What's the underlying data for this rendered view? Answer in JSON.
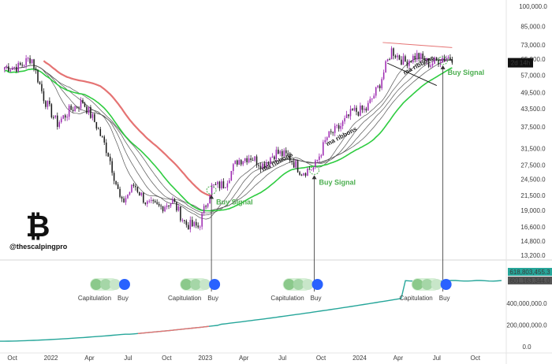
{
  "chart_data": {
    "type": "line",
    "title": "",
    "price_panel": {
      "scale": "log",
      "ylim": [
        13200,
        100000
      ],
      "y_ticks": [
        "100,000.0",
        "85,000.0",
        "73,000.0",
        "65,000.0",
        "57,000.0",
        "49,500.0",
        "43,500.0",
        "37,500.0",
        "31,500.0",
        "27,500.0",
        "24,500.0",
        "21,500.0",
        "19,000.0",
        "16,600.0",
        "14,800.0",
        "13,200.0"
      ],
      "current_price_label": "2d 14h",
      "series": [
        {
          "kind": "candlestick",
          "dates": [
            "2021-10",
            "2021-11",
            "2021-12",
            "2022-01",
            "2022-02",
            "2022-03",
            "2022-04",
            "2022-05",
            "2022-06",
            "2022-07",
            "2022-08",
            "2022-09",
            "2022-10",
            "2022-11",
            "2022-12",
            "2023-01",
            "2023-02",
            "2023-03",
            "2023-04",
            "2023-05",
            "2023-06",
            "2023-07",
            "2023-08",
            "2023-09",
            "2023-10",
            "2023-11",
            "2023-12",
            "2024-01",
            "2024-02",
            "2024-03",
            "2024-04",
            "2024-05",
            "2024-06",
            "2024-07"
          ],
          "close": [
            61000,
            66000,
            47000,
            38500,
            43000,
            46000,
            38500,
            30000,
            20000,
            23500,
            20000,
            19500,
            20500,
            17000,
            16600,
            23000,
            23500,
            28500,
            29500,
            27500,
            30500,
            29500,
            26000,
            27000,
            34500,
            37500,
            42500,
            43000,
            52000,
            70000,
            63500,
            67000,
            62500,
            66000
          ]
        }
      ],
      "annotations": [
        {
          "text": "Buy Signal",
          "date": "2023-01"
        },
        {
          "text": "Buy Signal",
          "date": "2023-09"
        },
        {
          "text": "Buy Signal",
          "date": "2024-07"
        },
        {
          "text": "ma ribbons",
          "date": "2023-06"
        },
        {
          "text": "ma ribbons",
          "date": "2023-11"
        },
        {
          "text": "ma ribbons",
          "date": "2024-05"
        }
      ]
    },
    "indicator_panel": {
      "y_ticks": [
        "400,000,000.0",
        "200,000,000.0",
        "0.0"
      ],
      "value_labels": [
        "618,803,455.3",
        "601,163,344.0"
      ],
      "signal_labels": [
        {
          "text": "Capitulation",
          "date": "2022-05"
        },
        {
          "text": "Buy",
          "date": "2022-06"
        },
        {
          "text": "Capitulation",
          "date": "2022-12"
        },
        {
          "text": "Buy",
          "date": "2023-01"
        },
        {
          "text": "Capitulation",
          "date": "2023-08"
        },
        {
          "text": "Buy",
          "date": "2023-09"
        },
        {
          "text": "Capitulation",
          "date": "2024-05"
        },
        {
          "text": "Buy",
          "date": "2024-07"
        }
      ]
    },
    "x_ticks": [
      "Oct",
      "2022",
      "Apr",
      "Jul",
      "Oct",
      "2023",
      "Apr",
      "Jul",
      "Oct",
      "2024",
      "Apr",
      "Jul",
      "Oct"
    ],
    "grid": false,
    "watermark": {
      "symbol": "₿",
      "handle": "@thescalpingpro"
    },
    "colors": {
      "bull": "#9c27b0",
      "bear": "#1a1a1a",
      "ribbon_green": "#2ecc40",
      "ribbon_red": "#e57373",
      "ribbon_gray": "#555555",
      "signal_green": "#4caf50",
      "signal_blue": "#2962ff",
      "trend_red": "#e57373"
    }
  }
}
